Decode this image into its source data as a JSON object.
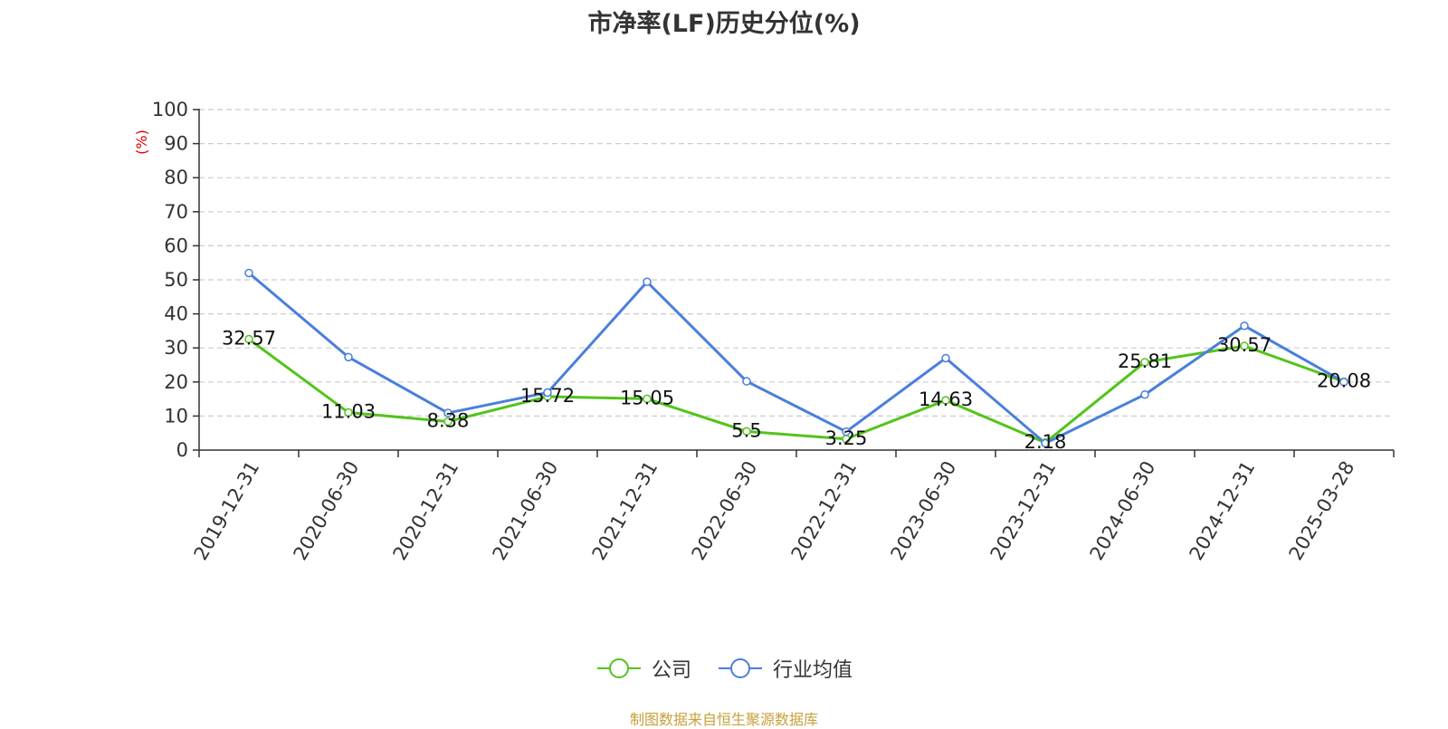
{
  "colors": {
    "company": "#52c41a",
    "industry": "#4a7fdb",
    "ylabel": "#e00000",
    "source": "#c8a03c",
    "grid": "#cccccc",
    "axis": "#333333"
  },
  "legend": {
    "company_label": "公司",
    "industry_label": "行业均值"
  },
  "source_note": "制图数据来自恒生聚源数据库",
  "chart_data": {
    "type": "line",
    "title": "市净率(LF)历史分位(%)",
    "xlabel": "",
    "ylabel": "(%)",
    "ylim": [
      0,
      100
    ],
    "yticks": [
      0,
      10,
      20,
      30,
      40,
      50,
      60,
      70,
      80,
      90,
      100
    ],
    "grid": true,
    "legend_position": "bottom",
    "categories": [
      "2019-12-31",
      "2020-06-30",
      "2020-12-31",
      "2021-06-30",
      "2021-12-31",
      "2022-06-30",
      "2022-12-31",
      "2023-06-30",
      "2023-12-31",
      "2024-06-30",
      "2024-12-31",
      "2025-03-28"
    ],
    "series": [
      {
        "name": "公司",
        "values": [
          32.57,
          11.03,
          8.38,
          15.72,
          15.05,
          5.5,
          3.25,
          14.63,
          2.18,
          25.81,
          30.57,
          20.08
        ],
        "labels": [
          "32.57",
          "11.03",
          "8.38",
          "15.72",
          "15.05",
          "5.5",
          "3.25",
          "14.63",
          "2.18",
          "25.81",
          "30.57",
          "20.08"
        ]
      },
      {
        "name": "行业均值",
        "values": [
          52.0,
          27.3,
          10.9,
          16.9,
          49.4,
          20.2,
          5.4,
          27.0,
          2.0,
          16.3,
          36.5,
          20.0
        ]
      }
    ]
  }
}
